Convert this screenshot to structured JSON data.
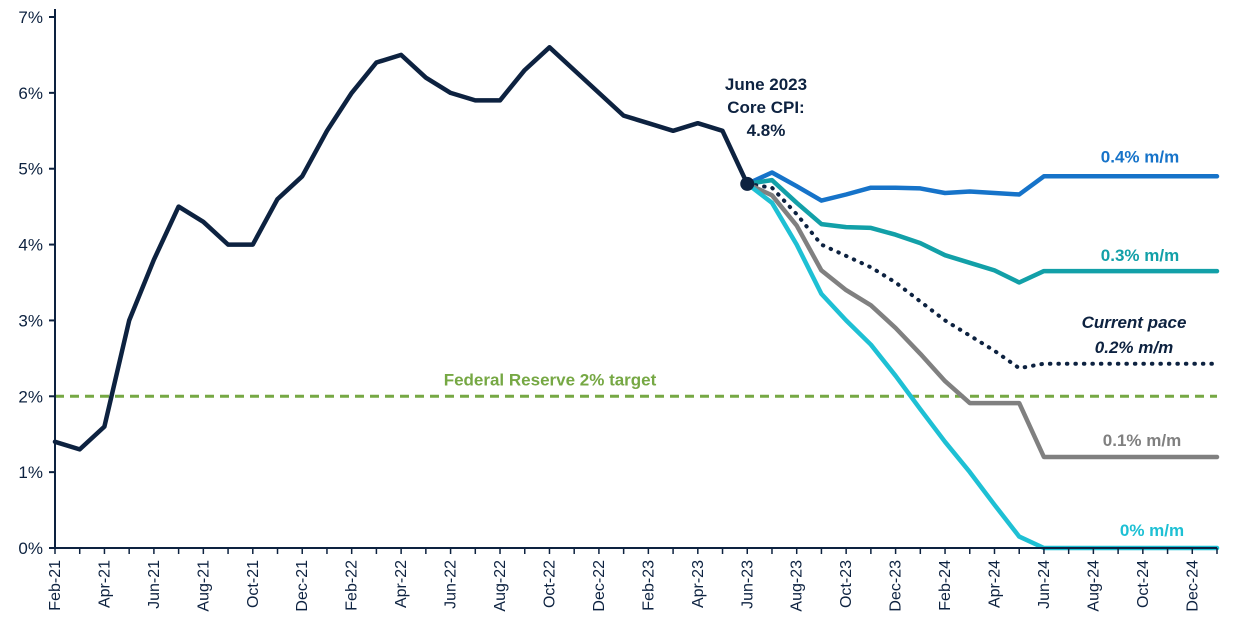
{
  "chart_data": {
    "type": "line",
    "title": "",
    "xlabel": "",
    "ylabel": "",
    "ylim": [
      0,
      7
    ],
    "y_ticks": [
      "0%",
      "1%",
      "2%",
      "3%",
      "4%",
      "5%",
      "6%",
      "7%"
    ],
    "x_tick_labels": [
      "Feb-21",
      "Apr-21",
      "Jun-21",
      "Aug-21",
      "Oct-21",
      "Dec-21",
      "Feb-22",
      "Apr-22",
      "Jun-22",
      "Aug-22",
      "Oct-22",
      "Dec-22",
      "Feb-23",
      "Apr-23",
      "Jun-23",
      "Aug-23",
      "Oct-23",
      "Dec-23",
      "Feb-24",
      "Apr-24",
      "Jun-24",
      "Aug-24",
      "Oct-24",
      "Dec-24"
    ],
    "x_months": [
      "Feb-21",
      "Mar-21",
      "Apr-21",
      "May-21",
      "Jun-21",
      "Jul-21",
      "Aug-21",
      "Sep-21",
      "Oct-21",
      "Nov-21",
      "Dec-21",
      "Jan-22",
      "Feb-22",
      "Mar-22",
      "Apr-22",
      "May-22",
      "Jun-22",
      "Jul-22",
      "Aug-22",
      "Sep-22",
      "Oct-22",
      "Nov-22",
      "Dec-22",
      "Jan-23",
      "Feb-23",
      "Mar-23",
      "Apr-23",
      "May-23",
      "Jun-23",
      "Jul-23",
      "Aug-23",
      "Sep-23",
      "Oct-23",
      "Nov-23",
      "Dec-23",
      "Jan-24",
      "Feb-24",
      "Mar-24",
      "Apr-24",
      "May-24",
      "Jun-24",
      "Jul-24",
      "Aug-24",
      "Sep-24",
      "Oct-24",
      "Nov-24",
      "Dec-24",
      "Jan-25"
    ],
    "reference_line": {
      "label": "Federal Reserve 2% target",
      "value": 2.0,
      "color": "#76a844"
    },
    "annotation": {
      "lines": [
        "June 2023",
        "Core CPI:",
        "4.8%"
      ],
      "x": "Jun-23",
      "y": 4.8
    },
    "series": [
      {
        "name": "Core CPI",
        "color": "#0d2240",
        "style": "solid",
        "x": [
          "Feb-21",
          "Mar-21",
          "Apr-21",
          "May-21",
          "Jun-21",
          "Jul-21",
          "Aug-21",
          "Sep-21",
          "Oct-21",
          "Nov-21",
          "Dec-21",
          "Jan-22",
          "Feb-22",
          "Mar-22",
          "Apr-22",
          "May-22",
          "Jun-22",
          "Jul-22",
          "Aug-22",
          "Sep-22",
          "Oct-22",
          "Nov-22",
          "Dec-22",
          "Jan-23",
          "Feb-23",
          "Mar-23",
          "Apr-23",
          "May-23",
          "Jun-23"
        ],
        "values": [
          1.4,
          1.3,
          1.6,
          3.0,
          3.8,
          4.5,
          4.3,
          4.0,
          4.0,
          4.6,
          4.9,
          5.5,
          6.0,
          6.4,
          6.5,
          6.2,
          6.0,
          5.9,
          5.9,
          6.3,
          6.6,
          6.3,
          6.0,
          5.7,
          5.6,
          5.5,
          5.6,
          5.5,
          4.8
        ]
      },
      {
        "name": "0.4% m/m",
        "label": "0.4% m/m",
        "color": "#1673c9",
        "style": "solid",
        "x": [
          "Jun-23",
          "Jul-23",
          "Aug-23",
          "Sep-23",
          "Oct-23",
          "Nov-23",
          "Dec-23",
          "Jan-24",
          "Feb-24",
          "Mar-24",
          "Apr-24",
          "May-24",
          "Jun-24",
          "Jul-24",
          "Aug-24",
          "Sep-24",
          "Oct-24",
          "Nov-24",
          "Dec-24",
          "Jan-25"
        ],
        "values": [
          4.8,
          4.95,
          4.77,
          4.58,
          4.66,
          4.75,
          4.75,
          4.74,
          4.68,
          4.7,
          4.68,
          4.66,
          4.9,
          4.9,
          4.9,
          4.9,
          4.9,
          4.9,
          4.9,
          4.9
        ]
      },
      {
        "name": "0.3% m/m",
        "label": "0.3% m/m",
        "color": "#12a0a8",
        "style": "solid",
        "x": [
          "Jun-23",
          "Jul-23",
          "Aug-23",
          "Sep-23",
          "Oct-23",
          "Nov-23",
          "Dec-23",
          "Jan-24",
          "Feb-24",
          "Mar-24",
          "Apr-24",
          "May-24",
          "Jun-24",
          "Jul-24",
          "Aug-24",
          "Sep-24",
          "Oct-24",
          "Nov-24",
          "Dec-24",
          "Jan-25"
        ],
        "values": [
          4.8,
          4.85,
          4.55,
          4.27,
          4.23,
          4.22,
          4.13,
          4.02,
          3.86,
          3.76,
          3.66,
          3.5,
          3.65,
          3.65,
          3.65,
          3.65,
          3.65,
          3.65,
          3.65,
          3.65
        ]
      },
      {
        "name": "Current pace 0.2% m/m",
        "label_lines": [
          "Current pace",
          "0.2% m/m"
        ],
        "color": "#0d2240",
        "style": "dotted",
        "x": [
          "Jun-23",
          "Jul-23",
          "Aug-23",
          "Sep-23",
          "Oct-23",
          "Nov-23",
          "Dec-23",
          "Jan-24",
          "Feb-24",
          "Mar-24",
          "Apr-24",
          "May-24",
          "Jun-24",
          "Jul-24",
          "Aug-24",
          "Sep-24",
          "Oct-24",
          "Nov-24",
          "Dec-24",
          "Jan-25"
        ],
        "values": [
          4.8,
          4.75,
          4.4,
          4.0,
          3.85,
          3.7,
          3.5,
          3.25,
          3.0,
          2.8,
          2.6,
          2.37,
          2.43,
          2.43,
          2.43,
          2.43,
          2.43,
          2.43,
          2.43,
          2.43
        ]
      },
      {
        "name": "0.1% m/m",
        "label": "0.1% m/m",
        "color": "#808080",
        "style": "solid",
        "x": [
          "Jun-23",
          "Jul-23",
          "Aug-23",
          "Sep-23",
          "Oct-23",
          "Nov-23",
          "Dec-23",
          "Jan-24",
          "Feb-24",
          "Mar-24",
          "Apr-24",
          "May-24",
          "Jun-24",
          "Jul-24",
          "Aug-24",
          "Sep-24",
          "Oct-24",
          "Nov-24",
          "Dec-24",
          "Jan-25"
        ],
        "values": [
          4.8,
          4.65,
          4.25,
          3.66,
          3.4,
          3.2,
          2.9,
          2.56,
          2.2,
          1.91,
          1.91,
          1.91,
          1.2,
          1.2,
          1.2,
          1.2,
          1.2,
          1.2,
          1.2,
          1.2
        ]
      },
      {
        "name": "0% m/m",
        "label": "0% m/m",
        "color": "#1ec0d4",
        "style": "solid",
        "x": [
          "Jun-23",
          "Jul-23",
          "Aug-23",
          "Sep-23",
          "Oct-23",
          "Nov-23",
          "Dec-23",
          "Jan-24",
          "Feb-24",
          "Mar-24",
          "Apr-24",
          "May-24",
          "Jun-24",
          "Jul-24",
          "Aug-24",
          "Sep-24",
          "Oct-24",
          "Nov-24",
          "Dec-24",
          "Jan-25"
        ],
        "values": [
          4.8,
          4.55,
          4.0,
          3.35,
          3.0,
          2.68,
          2.27,
          1.83,
          1.4,
          1.0,
          0.57,
          0.15,
          0.0,
          0.0,
          0.0,
          0.0,
          0.0,
          0.0,
          0.0,
          0.0
        ]
      }
    ]
  }
}
